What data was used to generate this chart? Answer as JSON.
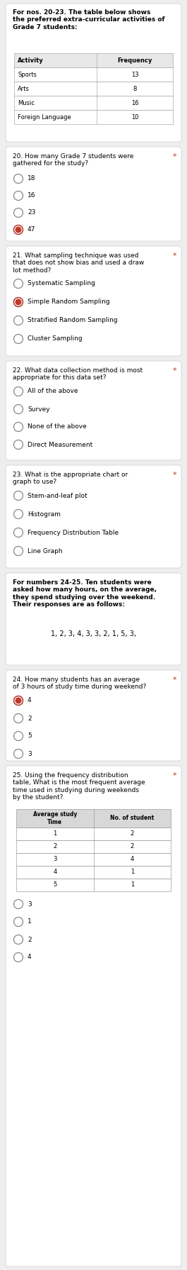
{
  "bg_color": "#eeeeee",
  "card_color": "#ffffff",
  "header_text": "For nos. 20-23. The table below shows\nthe preferred extra-curricular activities of\nGrade 7 students:",
  "table_headers": [
    "Activity",
    "Frequency"
  ],
  "table_rows": [
    [
      "Sports",
      "13"
    ],
    [
      "Arts",
      "8"
    ],
    [
      "Music",
      "16"
    ],
    [
      "Foreign Language",
      "10"
    ]
  ],
  "q20_text": "20. How many Grade 7 students were\ngathered for the study?",
  "q20_star": true,
  "q20_options": [
    "18",
    "16",
    "23",
    "47"
  ],
  "q20_selected": 3,
  "q21_text": "21. What sampling technique was used\nthat does not show bias and used a draw\nlot method?",
  "q21_star": true,
  "q21_options": [
    "Systematic Sampling",
    "Simple Random Sampling",
    "Stratified Random Sampling",
    "Cluster Sampling"
  ],
  "q21_selected": 1,
  "q22_text": "22. What data collection method is most\nappropriate for this data set?",
  "q22_star": true,
  "q22_options": [
    "All of the above",
    "Survey",
    "None of the above",
    "Direct Measurement"
  ],
  "q22_selected": -1,
  "q23_text": "23. What is the appropriate chart or\ngraph to use?",
  "q23_star": true,
  "q23_options": [
    "Stem-and-leaf plot",
    "Histogram",
    "Frequency Distribution Table",
    "Line Graph"
  ],
  "q23_selected": -1,
  "q24_header": "For numbers 24-25. Ten students were\nasked how many hours, on the average,\nthey spend studying over the weekend.\nTheir responses are as follows:",
  "q24_data": "1, 2, 3, 4, 3, 3, 2, 1, 5, 3,",
  "q24_text": "24. How many students has an average\nof 3 hours of study time during weekend?",
  "q24_star": true,
  "q24_options": [
    "4",
    "2",
    "5",
    "3"
  ],
  "q24_selected": 0,
  "q25_text": "25. Using the frequency distribution\ntable, What is the most frequent average\ntime used in studying during weekends\nby the student?",
  "q25_star": true,
  "q25_table_headers": [
    "Average study\nTime",
    "No. of student"
  ],
  "q25_table_rows": [
    [
      "1",
      "2"
    ],
    [
      "2",
      "2"
    ],
    [
      "3",
      "4"
    ],
    [
      "4",
      "1"
    ],
    [
      "5",
      "1"
    ]
  ],
  "q25_options": [
    "3",
    "1",
    "2",
    "4"
  ],
  "q25_selected": -1,
  "accent_color": "#c0392b"
}
